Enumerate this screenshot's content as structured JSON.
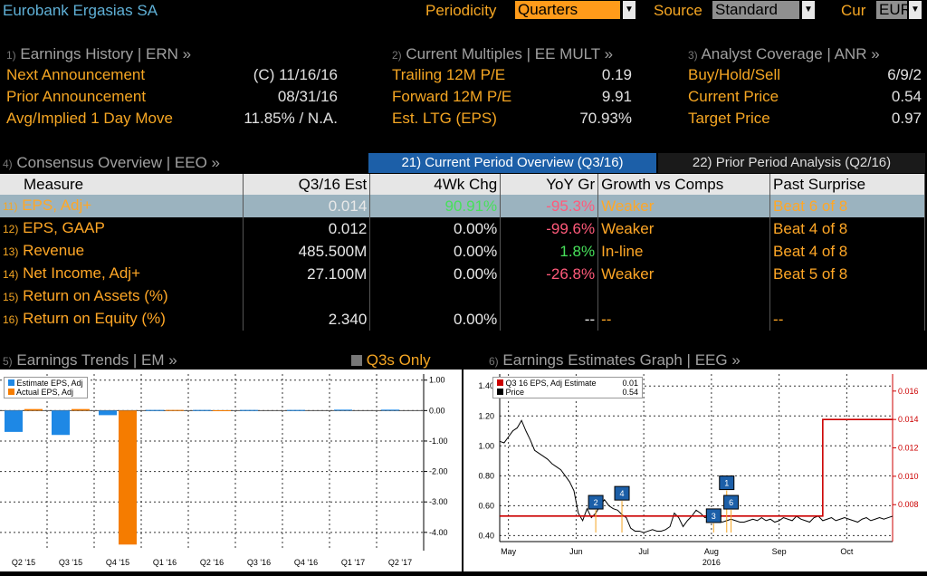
{
  "header": {
    "company": "Eurobank Ergasias SA",
    "periodicity_label": "Periodicity",
    "periodicity_value": "Quarters",
    "source_label": "Source",
    "source_value": "Standard",
    "currency_label": "Cur",
    "currency_value": "EUR"
  },
  "earnings_history": {
    "num": "1)",
    "title": "Earnings History | ERN »",
    "rows": [
      {
        "label": "Next Announcement",
        "value": "(C)  11/16/16"
      },
      {
        "label": "Prior Announcement",
        "value": "08/31/16"
      },
      {
        "label": "Avg/Implied 1 Day Move",
        "value": "11.85% / N.A."
      }
    ]
  },
  "multiples": {
    "num": "2)",
    "title": "Current Multiples | EE MULT »",
    "rows": [
      {
        "label": "Trailing 12M P/E",
        "value": "0.19"
      },
      {
        "label": "Forward 12M P/E",
        "value": "9.91"
      },
      {
        "label": "Est. LTG (EPS)",
        "value": "70.93%"
      }
    ]
  },
  "analyst": {
    "num": "3)",
    "title": "Analyst Coverage | ANR »",
    "rows": [
      {
        "label": "Buy/Hold/Sell",
        "value": "6/9/2"
      },
      {
        "label": "Current Price",
        "value": "0.54"
      },
      {
        "label": "Target Price",
        "value": "0.97"
      }
    ]
  },
  "consensus": {
    "num": "4)",
    "title": "Consensus Overview | EEO »",
    "tab_current": "21) Current Period Overview (Q3/16)",
    "tab_prior": "22) Prior Period Analysis (Q2/16)",
    "columns": [
      "Measure",
      "Q3/16 Est",
      "4Wk Chg",
      "YoY Gr",
      "Growth vs Comps",
      "Past Surprise"
    ],
    "rows": [
      {
        "num": "11)",
        "measure": "EPS, Adj+",
        "est": "0.014",
        "chg": "90.91%",
        "yoy": "-95.3%",
        "comps": "Weaker",
        "surprise": "Beat 6 of 8"
      },
      {
        "num": "12)",
        "measure": "EPS, GAAP",
        "est": "0.012",
        "chg": "0.00%",
        "yoy": "-99.6%",
        "comps": "Weaker",
        "surprise": "Beat 4 of 8"
      },
      {
        "num": "13)",
        "measure": "Revenue",
        "est": "485.500M",
        "chg": "0.00%",
        "yoy": "1.8%",
        "comps": "In-line",
        "surprise": "Beat 4 of 8"
      },
      {
        "num": "14)",
        "measure": "Net Income, Adj+",
        "est": "27.100M",
        "chg": "0.00%",
        "yoy": "-26.8%",
        "comps": "Weaker",
        "surprise": "Beat 5 of 8"
      },
      {
        "num": "15)",
        "measure": "Return on Assets (%)",
        "est": "",
        "chg": "",
        "yoy": "",
        "comps": "",
        "surprise": ""
      },
      {
        "num": "16)",
        "measure": "Return on Equity (%)",
        "est": "2.340",
        "chg": "0.00%",
        "yoy": "--",
        "comps": "--",
        "surprise": "--"
      }
    ]
  },
  "trends": {
    "num": "5)",
    "title": "Earnings Trends | EM »",
    "q3s_only": "Q3s Only",
    "legend": [
      "Estimate EPS, Adj",
      "Actual EPS, Adj"
    ]
  },
  "graph": {
    "num": "6)",
    "title": "Earnings Estimates Graph | EEG »",
    "legend": [
      {
        "label": "Q3 16 EPS, Adj Estimate",
        "value": "0.01"
      },
      {
        "label": "Price",
        "value": "0.54"
      }
    ]
  },
  "chart_data": [
    {
      "type": "bar",
      "categories": [
        "Q2 '15",
        "Q3 '15",
        "Q4 '15",
        "Q1 '16",
        "Q2 '16",
        "Q3 '16",
        "Q4 '16",
        "Q1 '17",
        "Q2 '17"
      ],
      "series": [
        {
          "name": "Estimate EPS, Adj",
          "color": "#1e88e5",
          "values": [
            -0.7,
            -0.8,
            -0.15,
            0.02,
            0.02,
            0.02,
            0.02,
            0.03,
            0.03
          ]
        },
        {
          "name": "Actual EPS, Adj",
          "color": "#f57c00",
          "values": [
            0.05,
            0.05,
            -4.4,
            0.02,
            0.01,
            null,
            null,
            null,
            null
          ]
        }
      ],
      "ylim": [
        -4.6,
        1.2
      ],
      "yticks": [
        "1.00",
        "0.00",
        "-1.00",
        "-2.00",
        "-3.00",
        "-4.00"
      ],
      "ytick_values": [
        1,
        0,
        -1,
        -2,
        -3,
        -4
      ],
      "grid": true,
      "legend": "top-left"
    },
    {
      "type": "line",
      "x_labels": [
        "May",
        "Jun",
        "Jul",
        "Aug",
        "Sep",
        "Oct"
      ],
      "x_sublabel": "2016",
      "left_axis": {
        "ylim": [
          0.36,
          1.48
        ],
        "ticks": [
          "1.40",
          "1.20",
          "1.00",
          "0.80",
          "0.60",
          "0.40"
        ],
        "tick_values": [
          1.4,
          1.2,
          1.0,
          0.8,
          0.6,
          0.4
        ]
      },
      "right_axis": {
        "ylim": [
          0.0054,
          0.0172
        ],
        "ticks": [
          "0.016",
          "0.014",
          "0.012",
          "0.010",
          "0.008"
        ],
        "tick_values": [
          0.016,
          0.014,
          0.012,
          0.01,
          0.008
        ]
      },
      "series": [
        {
          "name": "Price",
          "color": "#000000",
          "axis": "left",
          "x": [
            0,
            2,
            4,
            6,
            8,
            10,
            12,
            14,
            16,
            18,
            20,
            22,
            24,
            26,
            28,
            30,
            32,
            34,
            36,
            38,
            40,
            42,
            44,
            46,
            48,
            50,
            52,
            54,
            56,
            58,
            60,
            62,
            64,
            66,
            68,
            70,
            72,
            74,
            76,
            78,
            80,
            82,
            84,
            86,
            88,
            90,
            92,
            94,
            96,
            98,
            100,
            102,
            104,
            106,
            108,
            110,
            112,
            114,
            116,
            118,
            120,
            122,
            124,
            126,
            128,
            130,
            132,
            134,
            136,
            138,
            140,
            142,
            144,
            146,
            148,
            150,
            152,
            154,
            156,
            158,
            160,
            162,
            164,
            166,
            168,
            170,
            172,
            174,
            176,
            178,
            180
          ],
          "y": [
            1.03,
            1.02,
            1.06,
            1.1,
            1.12,
            1.17,
            1.1,
            1.04,
            0.97,
            0.95,
            0.93,
            0.91,
            0.88,
            0.86,
            0.84,
            0.8,
            0.76,
            0.7,
            0.55,
            0.5,
            0.58,
            0.52,
            0.55,
            0.6,
            0.64,
            0.6,
            0.58,
            0.57,
            0.54,
            0.52,
            0.45,
            0.43,
            0.43,
            0.42,
            0.43,
            0.44,
            0.43,
            0.43,
            0.44,
            0.46,
            0.55,
            0.52,
            0.46,
            0.5,
            0.53,
            0.57,
            0.55,
            0.52,
            0.53,
            0.51,
            0.5,
            0.49,
            0.5,
            0.51,
            0.5,
            0.49,
            0.49,
            0.5,
            0.51,
            0.5,
            0.52,
            0.5,
            0.51,
            0.49,
            0.5,
            0.52,
            0.51,
            0.5,
            0.53,
            0.51,
            0.5,
            0.49,
            0.52,
            0.53,
            0.5,
            0.51,
            0.52,
            0.5,
            0.51,
            0.52,
            0.51,
            0.5,
            0.49,
            0.51,
            0.52,
            0.5,
            0.51,
            0.52,
            0.51,
            0.52,
            0.53
          ]
        },
        {
          "name": "Q3 16 EPS, Adj Estimate",
          "color": "#cc0000",
          "axis": "right",
          "x": [
            0,
            148,
            148,
            180
          ],
          "y": [
            0.0072,
            0.0072,
            0.014,
            0.014
          ]
        }
      ],
      "markers": [
        {
          "label": "2",
          "x": 44,
          "y": 0.62
        },
        {
          "label": "4",
          "x": 56,
          "y": 0.68
        },
        {
          "label": "3",
          "x": 98,
          "y": 0.53
        },
        {
          "label": "1",
          "x": 104,
          "y": 0.75
        },
        {
          "label": "6",
          "x": 106,
          "y": 0.62
        }
      ],
      "grid": true,
      "legend": "top-left"
    }
  ]
}
